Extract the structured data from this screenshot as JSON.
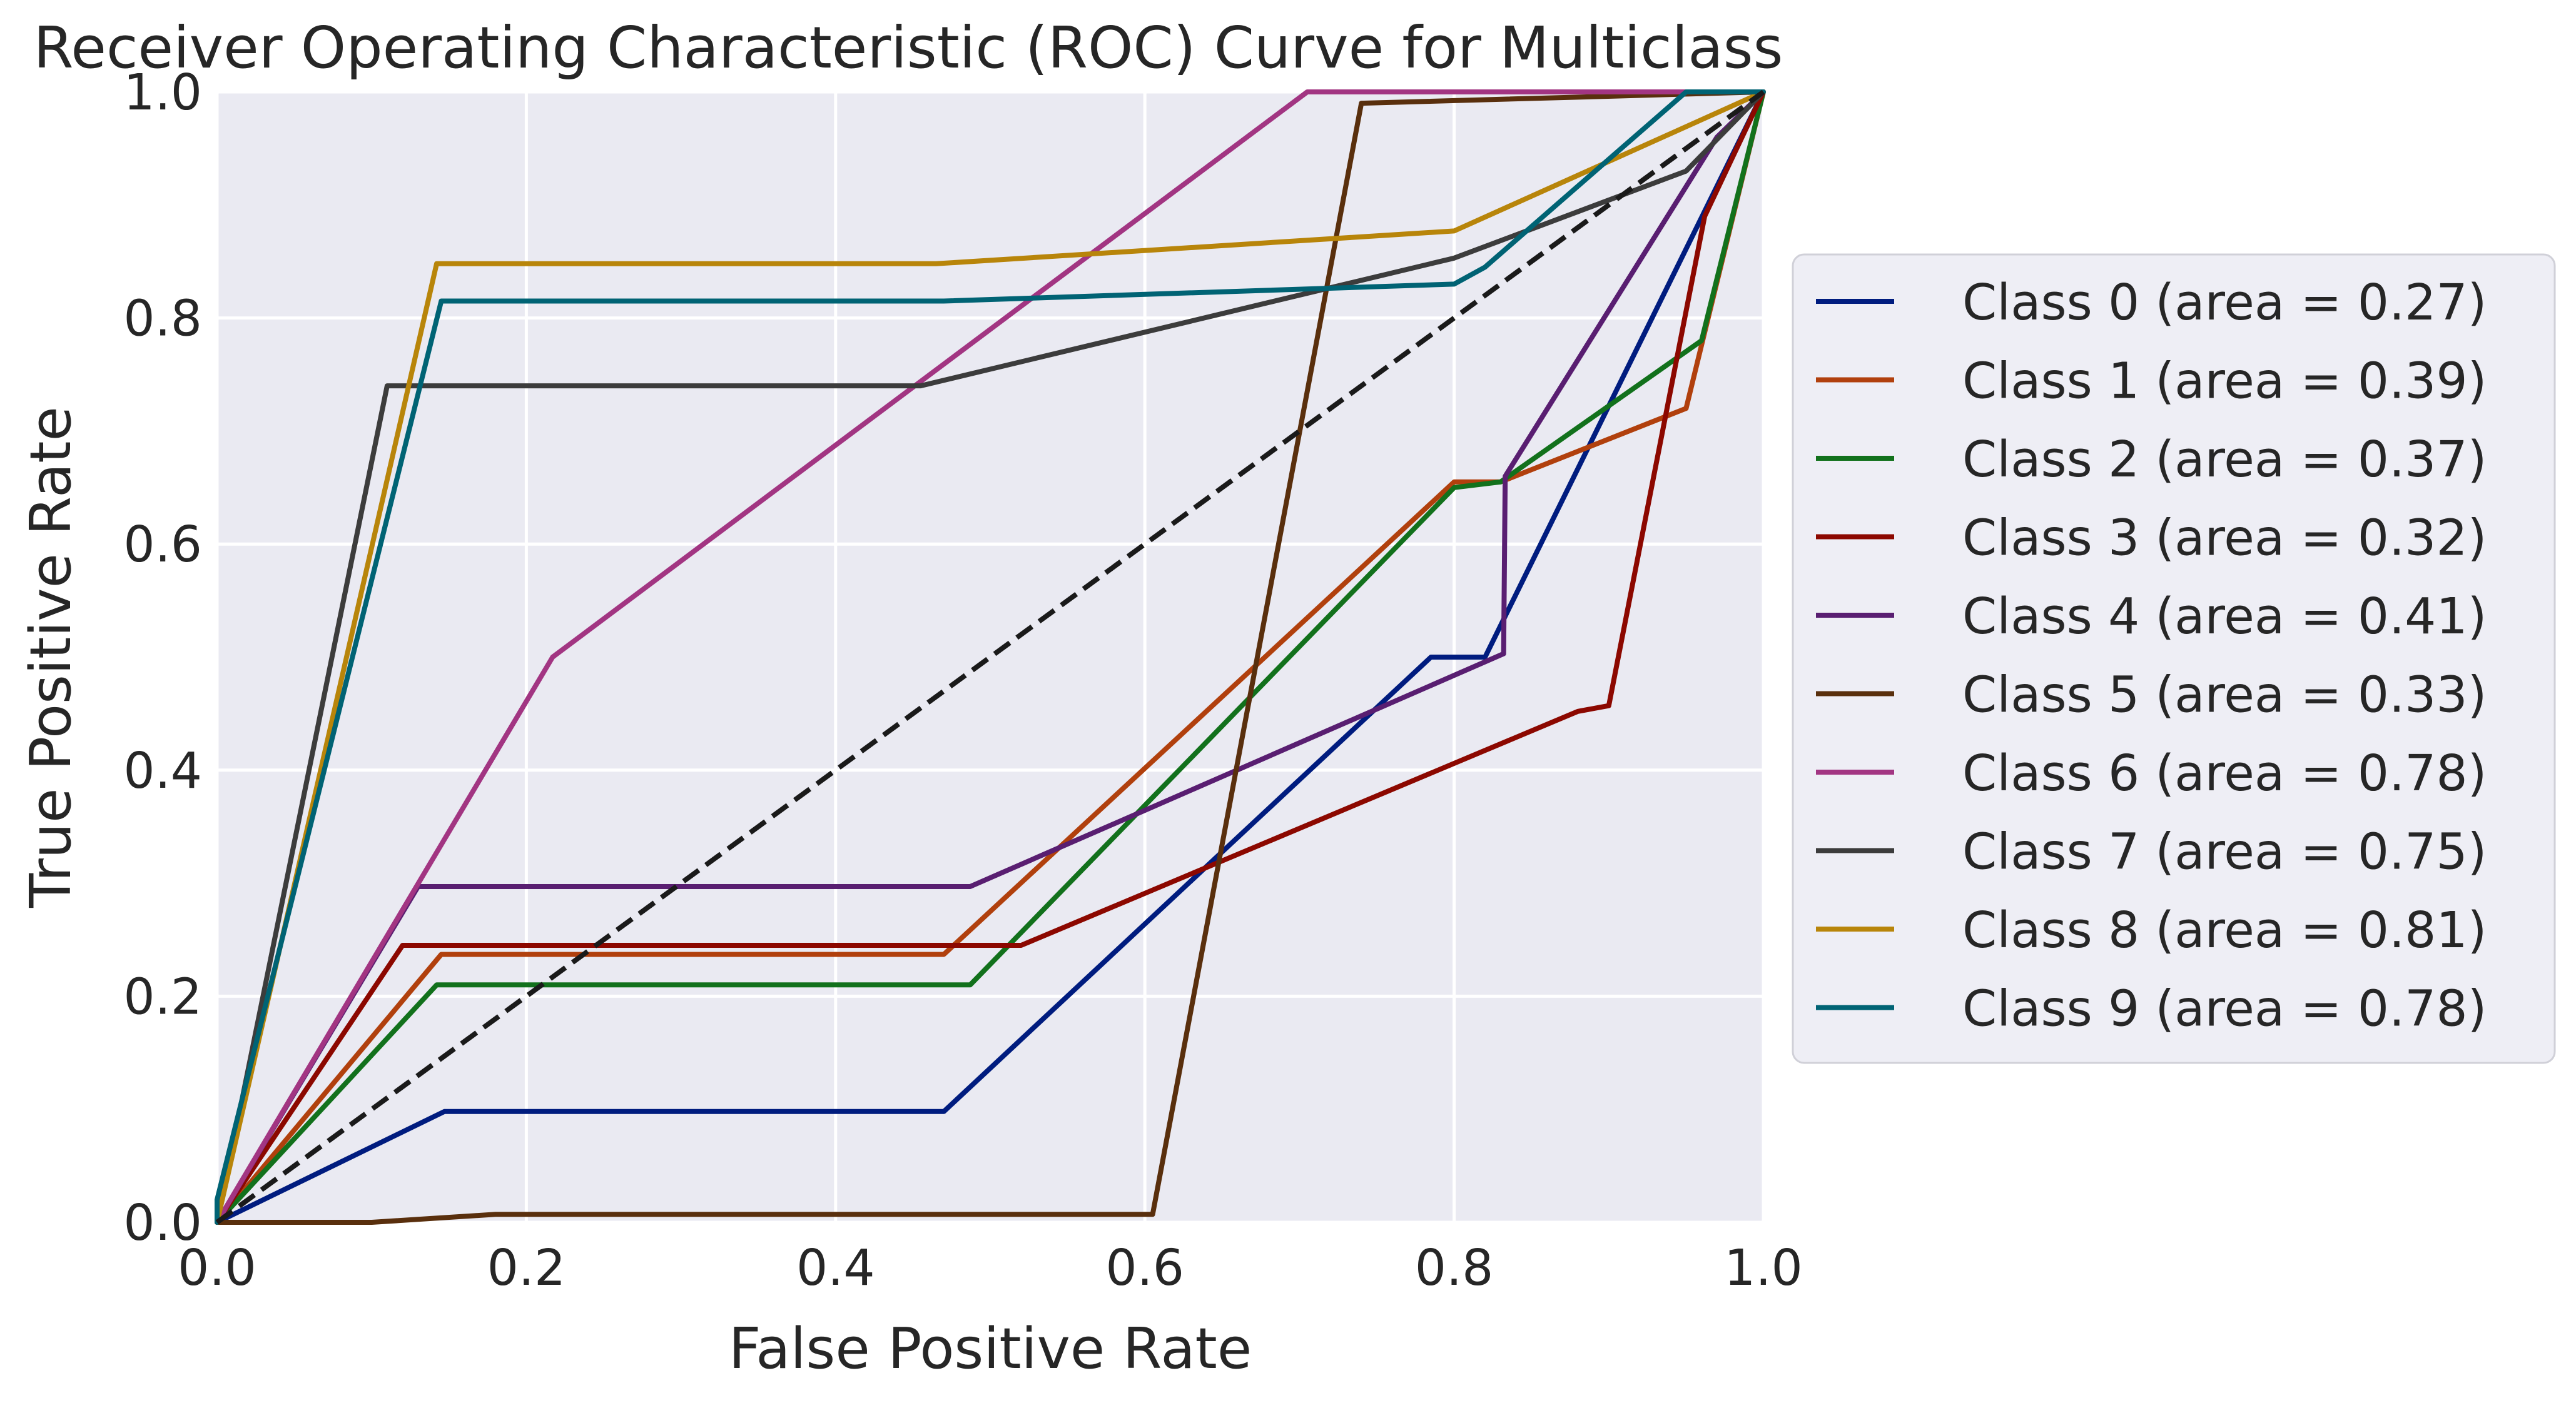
{
  "chart_data": {
    "type": "line",
    "title": "Receiver Operating Characteristic (ROC) Curve for Multiclass",
    "xlabel": "False Positive Rate",
    "ylabel": "True Positive Rate",
    "xlim": [
      0.0,
      1.0
    ],
    "ylim": [
      0.0,
      1.0
    ],
    "xticks": [
      "0.0",
      "0.2",
      "0.4",
      "0.6",
      "0.8",
      "1.0"
    ],
    "yticks": [
      "0.0",
      "0.2",
      "0.4",
      "0.6",
      "0.8",
      "1.0"
    ],
    "grid": true,
    "legend_position": "right",
    "background": "#eaeaf2",
    "grid_color": "#ffffff",
    "chance_line": {
      "color": "#1a1a1a",
      "style": "dashed",
      "x": [
        0,
        1
      ],
      "y": [
        0,
        1
      ]
    },
    "series": [
      {
        "name": "Class 0 (area = 0.27)",
        "color": "#001c7f",
        "x": [
          0,
          0.0,
          0.147,
          0.47,
          0.785,
          0.82,
          1.0
        ],
        "y": [
          0,
          0.0,
          0.098,
          0.098,
          0.5,
          0.5,
          1.0
        ]
      },
      {
        "name": "Class 1 (area = 0.39)",
        "color": "#b1400d",
        "x": [
          0,
          0.145,
          0.47,
          0.8,
          0.83,
          0.95,
          1.0
        ],
        "y": [
          0,
          0.237,
          0.237,
          0.655,
          0.655,
          0.72,
          1.0
        ]
      },
      {
        "name": "Class 2 (area = 0.37)",
        "color": "#12711c",
        "x": [
          0,
          0.142,
          0.487,
          0.8,
          0.83,
          0.96,
          1.0
        ],
        "y": [
          0,
          0.21,
          0.21,
          0.65,
          0.655,
          0.78,
          1.0
        ]
      },
      {
        "name": "Class 3 (area = 0.32)",
        "color": "#8c0800",
        "x": [
          0,
          0.12,
          0.52,
          0.88,
          0.9,
          0.962,
          1.0
        ],
        "y": [
          0,
          0.245,
          0.245,
          0.452,
          0.457,
          0.89,
          1.0
        ]
      },
      {
        "name": "Class 4 (area = 0.41)",
        "color": "#591e71",
        "x": [
          0,
          0.13,
          0.487,
          0.832,
          0.833,
          0.97,
          1.0
        ],
        "y": [
          0,
          0.297,
          0.297,
          0.503,
          0.66,
          0.96,
          1.0
        ]
      },
      {
        "name": "Class 5 (area = 0.33)",
        "color": "#592f0d",
        "x": [
          0,
          0.1,
          0.18,
          0.605,
          0.74,
          1.0
        ],
        "y": [
          0,
          0.0,
          0.007,
          0.007,
          0.99,
          1.0
        ]
      },
      {
        "name": "Class 6 (area = 0.78)",
        "color": "#a23582",
        "x": [
          0,
          0.217,
          0.705,
          1.0
        ],
        "y": [
          0,
          0.5,
          1.0,
          1.0
        ]
      },
      {
        "name": "Class 7 (area = 0.75)",
        "color": "#3c3c3c",
        "x": [
          0,
          0.11,
          0.455,
          0.8,
          0.95,
          1.0
        ],
        "y": [
          0,
          0.74,
          0.74,
          0.853,
          0.93,
          1.0
        ]
      },
      {
        "name": "Class 8 (area = 0.81)",
        "color": "#b8850a",
        "x": [
          0,
          0.142,
          0.465,
          0.8,
          1.0
        ],
        "y": [
          0,
          0.848,
          0.848,
          0.877,
          1.0
        ]
      },
      {
        "name": "Class 9 (area = 0.78)",
        "color": "#006374",
        "x": [
          0,
          0.0,
          0.145,
          0.47,
          0.8,
          0.82,
          0.95,
          1.0
        ],
        "y": [
          0,
          0.02,
          0.815,
          0.815,
          0.83,
          0.845,
          1.0,
          1.0
        ]
      }
    ]
  }
}
